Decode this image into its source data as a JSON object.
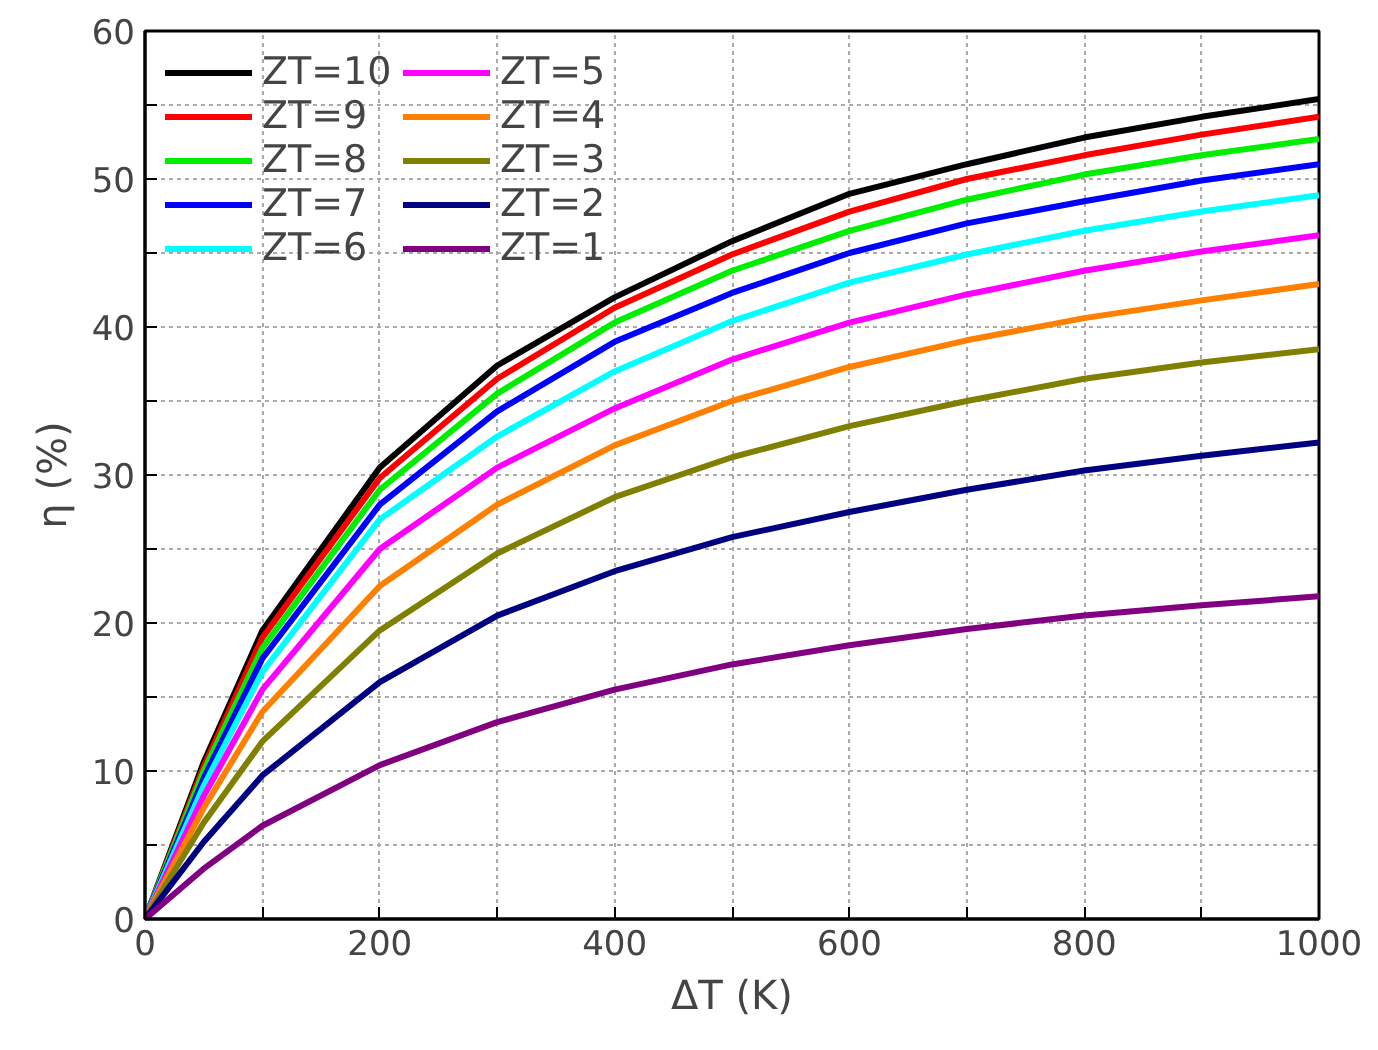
{
  "chart_data": {
    "type": "line",
    "xlabel": "ΔT (K)",
    "ylabel": "η (%)",
    "x": [
      0,
      50,
      100,
      200,
      300,
      400,
      500,
      600,
      700,
      800,
      900,
      1000
    ],
    "xlim": [
      0,
      1000
    ],
    "ylim": [
      0,
      60
    ],
    "xticks": [
      0,
      {
        "value": 100,
        "label": null
      },
      200,
      {
        "value": 300,
        "label": null
      },
      400,
      {
        "value": 500,
        "label": null
      },
      600,
      {
        "value": 700,
        "label": null
      },
      800,
      {
        "value": 900,
        "label": null
      },
      1000
    ],
    "yticks": [
      0,
      {
        "value": 5,
        "label": null
      },
      10,
      {
        "value": 15,
        "label": null
      },
      20,
      {
        "value": 25,
        "label": null
      },
      30,
      {
        "value": 35,
        "label": null
      },
      40,
      {
        "value": 45,
        "label": null
      },
      50,
      {
        "value": 55,
        "label": null
      },
      60
    ],
    "grid": true,
    "legend": "top left",
    "line_style": "solid",
    "marker": "none",
    "series": [
      {
        "name": "ZT=10",
        "color": "#000000",
        "values": [
          0,
          10.6,
          19.5,
          30.5,
          37.4,
          42,
          45.8,
          49,
          51,
          52.8,
          54.2,
          55.4
        ]
      },
      {
        "name": "ZT=9",
        "color": "#ff0000",
        "values": [
          0,
          10.3,
          19,
          29.8,
          36.5,
          41.3,
          44.9,
          47.8,
          50,
          51.6,
          53,
          54.2
        ]
      },
      {
        "name": "ZT=8",
        "color": "#00ee00",
        "values": [
          0,
          10,
          18.3,
          29,
          35.5,
          40.3,
          43.8,
          46.5,
          48.6,
          50.3,
          51.6,
          52.7
        ]
      },
      {
        "name": "ZT=7",
        "color": "#0000ff",
        "values": [
          0,
          9.5,
          17.6,
          28,
          34.3,
          39,
          42.3,
          45,
          47,
          48.5,
          49.9,
          51
        ]
      },
      {
        "name": "ZT=6",
        "color": "#00ffff",
        "values": [
          0,
          9,
          16.7,
          27,
          32.6,
          37,
          40.4,
          43,
          44.9,
          46.5,
          47.8,
          48.9
        ]
      },
      {
        "name": "ZT=5",
        "color": "#ff00ff",
        "values": [
          0,
          8.3,
          15.5,
          25,
          30.5,
          34.5,
          37.8,
          40.3,
          42.2,
          43.8,
          45.1,
          46.2
        ]
      },
      {
        "name": "ZT=4",
        "color": "#ff8000",
        "values": [
          0,
          7.5,
          14,
          22.5,
          28,
          32,
          35,
          37.3,
          39.1,
          40.6,
          41.8,
          42.9
        ]
      },
      {
        "name": "ZT=3",
        "color": "#808000",
        "values": [
          0,
          6.5,
          12,
          19.5,
          24.7,
          28.5,
          31.2,
          33.3,
          35,
          36.5,
          37.6,
          38.5
        ]
      },
      {
        "name": "ZT=2",
        "color": "#000080",
        "values": [
          0,
          5.2,
          9.7,
          16,
          20.5,
          23.5,
          25.8,
          27.5,
          29,
          30.3,
          31.3,
          32.2
        ]
      },
      {
        "name": "ZT=1",
        "color": "#800080",
        "values": [
          0,
          3.4,
          6.3,
          10.4,
          13.3,
          15.5,
          17.2,
          18.5,
          19.6,
          20.5,
          21.2,
          21.8
        ]
      }
    ]
  }
}
